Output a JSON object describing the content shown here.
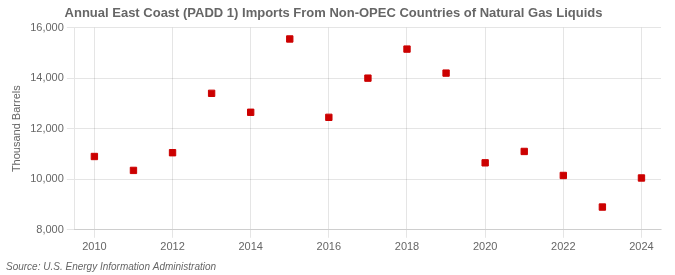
{
  "chart_data": {
    "type": "scatter",
    "title": "Annual East Coast (PADD 1) Imports From Non-OPEC Countries of Natural Gas Liquids",
    "ylabel": "Thousand Barrels",
    "source": "Source: U.S. Energy Information Administration",
    "x": [
      2010,
      2011,
      2012,
      2013,
      2014,
      2015,
      2016,
      2017,
      2018,
      2019,
      2020,
      2021,
      2022,
      2023,
      2024
    ],
    "values": [
      10900,
      10350,
      11050,
      13400,
      12650,
      15550,
      12450,
      14000,
      15150,
      14200,
      10650,
      11100,
      10150,
      8900,
      10050
    ],
    "color": "#cc0000",
    "marker": "square",
    "xlim": [
      2009.5,
      2024.5
    ],
    "xticks": [
      2010,
      2012,
      2014,
      2016,
      2018,
      2020,
      2022,
      2024
    ],
    "ylim": [
      8000,
      16000
    ],
    "yticks": [
      {
        "value": 8000,
        "label": "8,000"
      },
      {
        "value": 10000,
        "label": "10,000"
      },
      {
        "value": 12000,
        "label": "12,000"
      },
      {
        "value": 14000,
        "label": "14,000"
      },
      {
        "value": 16000,
        "label": "16,000"
      }
    ],
    "grid": true
  }
}
